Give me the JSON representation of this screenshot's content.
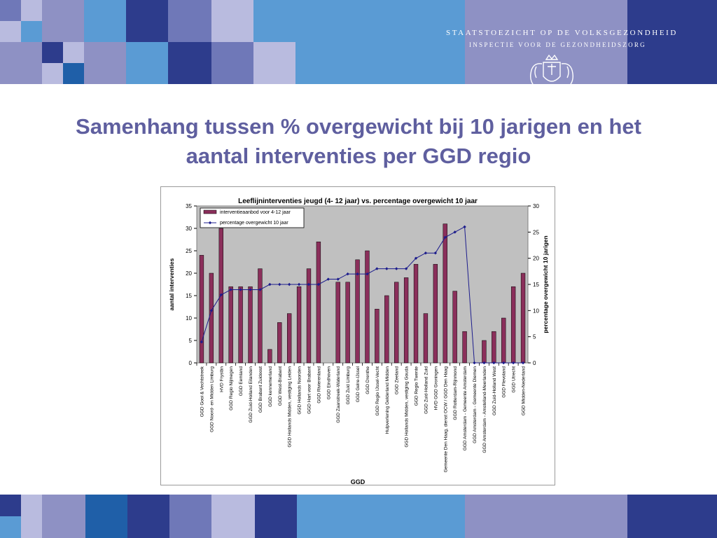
{
  "header": {
    "org_line1": "STAATSTOEZICHT OP DE VOLKSGEZONDHEID",
    "org_line2": "INSPECTIE VOOR DE GEZONDHEIDSZORG",
    "crest_icon": "coat-of-arms-icon"
  },
  "slide": {
    "title": "Samenhang tussen % overgewicht bij 10 jarigen en het aantal interventies per GGD regio"
  },
  "colors": {
    "title": "#5f5f9f",
    "bar_fill": "#8b2f5b",
    "line": "#1c1c8c",
    "plot_bg": "#c0c0c0"
  },
  "chart_data": {
    "type": "bar",
    "title": "Leeflijninterventies jeugd (4- 12 jaar) vs. percentage overgewicht 10 jaar",
    "xlabel": "GGD",
    "ylabel": "aantal interventies",
    "y2label": "percentage overgewicht 10 jarigen",
    "ylim": [
      0,
      35
    ],
    "y2lim": [
      0,
      30
    ],
    "yticks": [
      0,
      5,
      10,
      15,
      20,
      25,
      30,
      35
    ],
    "y2ticks": [
      0,
      5,
      10,
      15,
      20,
      25,
      30
    ],
    "legend_position": "top-left",
    "grid": false,
    "categories": [
      "GGD Gooi & Vechtstreek",
      "GGD Noord- en Midden Limburg",
      "HVD Fryslân",
      "GGD Regio Nijmegen",
      "GGD Eemland",
      "GGD Zuid-Holland Eilanden",
      "GGD Brabant Zuidoost",
      "GGD kennemerland",
      "GGD West-Brabant",
      "GGD Hollands Midden, vestiging Leiden",
      "GGD Hollands Noorden",
      "GGD Hart voor Brabant",
      "GGD Rivierenland",
      "GGD Eindhoven",
      "GGD Zaanstreek-Waterland",
      "GGD Zuid Limburg",
      "GGD Gelre-IJssel",
      "GGD Drenthe",
      "GGD Regio IJssel-Vecht",
      "Hulpverlening Gelderland Midden",
      "GGD Zeeland",
      "GGD Hollands Midden, vestiging Gouda",
      "GGD Regio Twente",
      "GGD Zuid-Holland Zuid",
      "HVD GGD Groningen",
      "Gemeente Den Haag, dienst OCW / GGD Den Haag",
      "GGD Rotterdam-Rijnmond",
      "GGD Amsterdam - Gemeente Amsterdam",
      "GGD Amsterdam - Gemeente Diemen",
      "GGD Amsterdam - Amstelland-Meerlanden",
      "GGD Zuid-Holland West",
      "GGD Flevoland",
      "GGD Utrecht",
      "GGD Midden-Nederland"
    ],
    "series": [
      {
        "name": "interventieaanbod voor 4-12 jaar",
        "kind": "bar",
        "axis": "left",
        "values": [
          24,
          20,
          30,
          17,
          17,
          17,
          21,
          3,
          9,
          11,
          17,
          21,
          27,
          0,
          18,
          18,
          23,
          25,
          12,
          15,
          18,
          19,
          22,
          11,
          22,
          31,
          16,
          7,
          0,
          5,
          7,
          10,
          17,
          20
        ]
      },
      {
        "name": "percentage overgewicht 10 jaar",
        "kind": "line",
        "axis": "right",
        "values": [
          4,
          10,
          13,
          14,
          14,
          14,
          14,
          15,
          15,
          15,
          15,
          15,
          15,
          16,
          16,
          17,
          17,
          17,
          18,
          18,
          18,
          18,
          20,
          21,
          21,
          24,
          25,
          26,
          0,
          0,
          0,
          0,
          0,
          0
        ]
      }
    ]
  }
}
